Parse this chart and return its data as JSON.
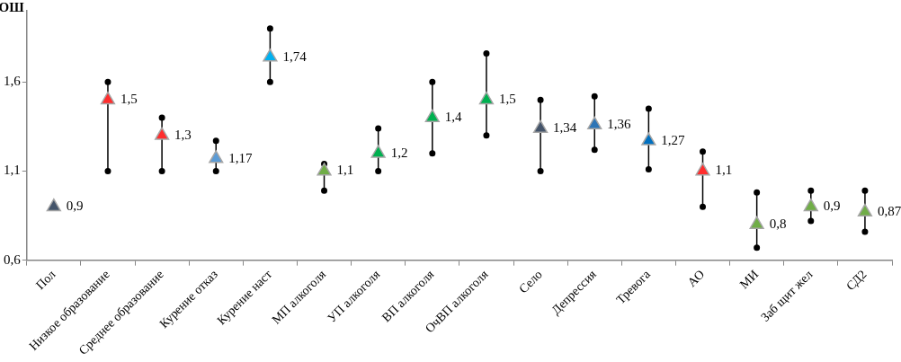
{
  "chart_data": {
    "type": "scatter",
    "ylabel": "ОШ",
    "categories": [
      "Пол",
      "Низкое образование",
      "Среднее образование",
      "Курение отказ",
      "Курение наст",
      "МП алкоголя",
      "УП алкоголя",
      "ВП алкоголя",
      "ОчВП алкоголя",
      "Село",
      "Депрессия",
      "Тревога",
      "АО",
      "МИ",
      "Заб щит жел",
      "СД2"
    ],
    "values": [
      0.9,
      1.5,
      1.3,
      1.17,
      1.74,
      1.1,
      1.2,
      1.4,
      1.5,
      1.34,
      1.36,
      1.27,
      1.1,
      0.8,
      0.9,
      0.87
    ],
    "errors": [
      null,
      [
        1.1,
        1.6
      ],
      [
        1.1,
        1.4
      ],
      [
        1.1,
        1.27
      ],
      [
        1.6,
        1.9
      ],
      [
        0.99,
        1.14
      ],
      [
        1.1,
        1.34
      ],
      [
        1.2,
        1.6
      ],
      [
        1.3,
        1.76
      ],
      [
        1.1,
        1.5
      ],
      [
        1.22,
        1.52
      ],
      [
        1.11,
        1.45
      ],
      [
        0.9,
        1.21
      ],
      [
        0.67,
        0.98
      ],
      [
        0.82,
        0.99
      ],
      [
        0.76,
        0.99
      ]
    ],
    "colors": [
      "#44546a",
      "#ff2d2d",
      "#ff2d2d",
      "#5b9bd5",
      "#00b0f0",
      "#70ad47",
      "#00b050",
      "#00b050",
      "#00b050",
      "#44546a",
      "#2e75b6",
      "#0070c0",
      "#ff2d2d",
      "#70ad47",
      "#70ad47",
      "#70ad47"
    ],
    "value_labels": [
      "0,9",
      "1,5",
      "1,3",
      "1,17",
      "1,74",
      "1,1",
      "1,2",
      "1,4",
      "1,5",
      "1,34",
      "1,36",
      "1,27",
      "1,1",
      "0,8",
      "0,9",
      "0,87"
    ],
    "marker": "triangle",
    "ylim": [
      0.6,
      2.0
    ],
    "yticks": [
      {
        "value": 0.6,
        "label": "0,6"
      },
      {
        "value": 1.1,
        "label": "1,1"
      },
      {
        "value": 1.6,
        "label": "1,6"
      }
    ]
  }
}
